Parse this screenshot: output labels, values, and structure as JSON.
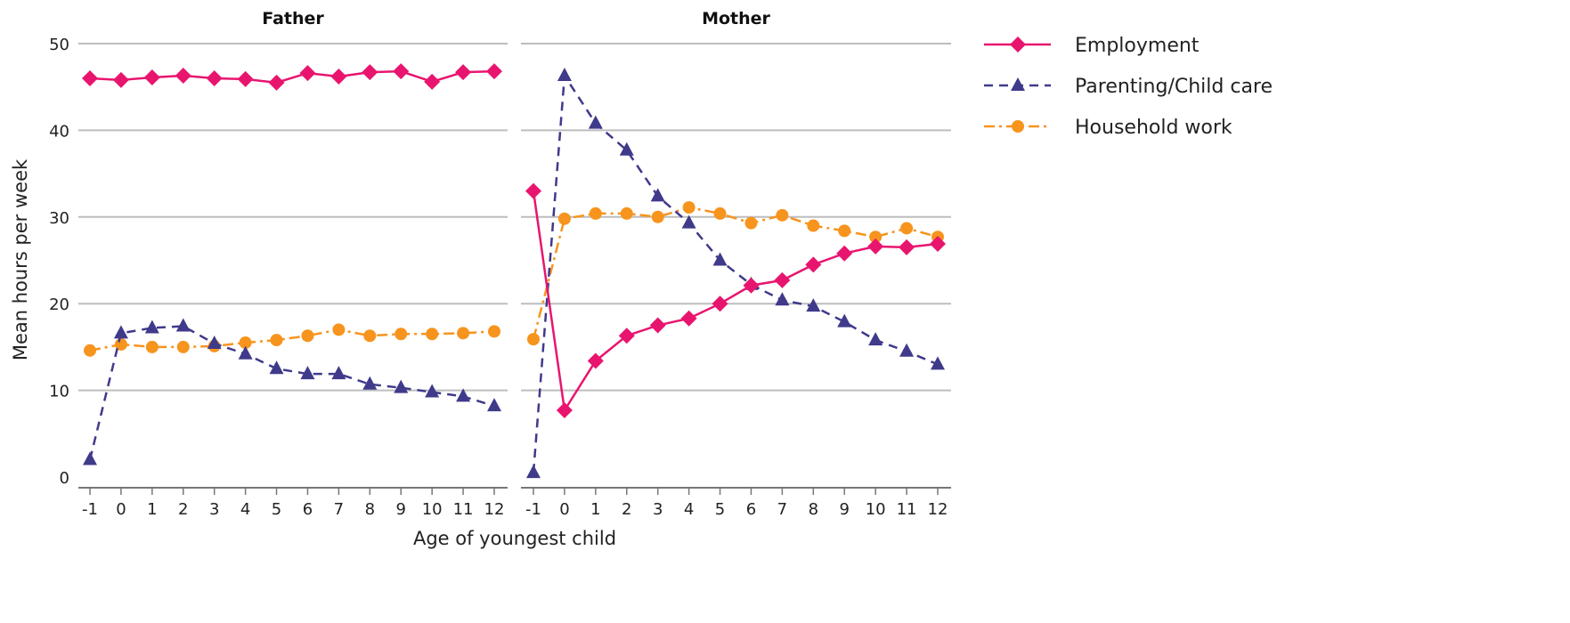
{
  "chart_data": {
    "type": "line",
    "xlabel": "Age of youngest child",
    "ylabel": "Mean hours per week",
    "ylim": [
      0,
      50
    ],
    "yticks": [
      0,
      10,
      20,
      30,
      40,
      50
    ],
    "x": [
      -1,
      0,
      1,
      2,
      3,
      4,
      5,
      6,
      7,
      8,
      9,
      10,
      11,
      12
    ],
    "grid": true,
    "legend_position": "right",
    "colors": {
      "Employment": "#e8156f",
      "Parenting/Child care": "#3f3a8a",
      "Household work": "#f7941d"
    },
    "legend": [
      {
        "name": "Employment",
        "style": "solid",
        "marker": "diamond"
      },
      {
        "name": "Parenting/Child care",
        "style": "dashed",
        "marker": "triangle"
      },
      {
        "name": "Household work",
        "style": "dash-dot",
        "marker": "circle"
      }
    ],
    "panels": [
      {
        "title": "Father",
        "series": [
          {
            "name": "Employment",
            "values": [
              46.0,
              45.8,
              46.1,
              46.3,
              46.0,
              45.9,
              45.5,
              46.6,
              46.2,
              46.7,
              46.8,
              45.6,
              46.7,
              46.8
            ]
          },
          {
            "name": "Parenting/Child care",
            "values": [
              2.0,
              16.6,
              17.2,
              17.4,
              15.4,
              14.2,
              12.5,
              11.9,
              11.9,
              10.7,
              10.3,
              9.8,
              9.3,
              8.2
            ]
          },
          {
            "name": "Household work",
            "values": [
              14.6,
              15.3,
              15.0,
              15.0,
              15.1,
              15.5,
              15.8,
              16.3,
              17.0,
              16.3,
              16.5,
              16.5,
              16.6,
              16.8
            ]
          }
        ]
      },
      {
        "title": "Mother",
        "series": [
          {
            "name": "Employment",
            "values": [
              33.0,
              7.7,
              13.4,
              16.3,
              17.5,
              18.3,
              20.0,
              22.1,
              22.7,
              24.5,
              25.8,
              26.6,
              26.5,
              26.9
            ]
          },
          {
            "name": "Parenting/Child care",
            "values": [
              0.5,
              46.3,
              40.8,
              37.7,
              32.4,
              29.3,
              25.0,
              22.2,
              20.4,
              19.7,
              17.9,
              15.8,
              14.5,
              13.0
            ]
          },
          {
            "name": "Household work",
            "values": [
              15.9,
              29.8,
              30.4,
              30.4,
              30.0,
              31.1,
              30.4,
              29.3,
              30.2,
              29.0,
              28.4,
              27.7,
              28.7,
              27.7
            ]
          }
        ]
      }
    ]
  }
}
